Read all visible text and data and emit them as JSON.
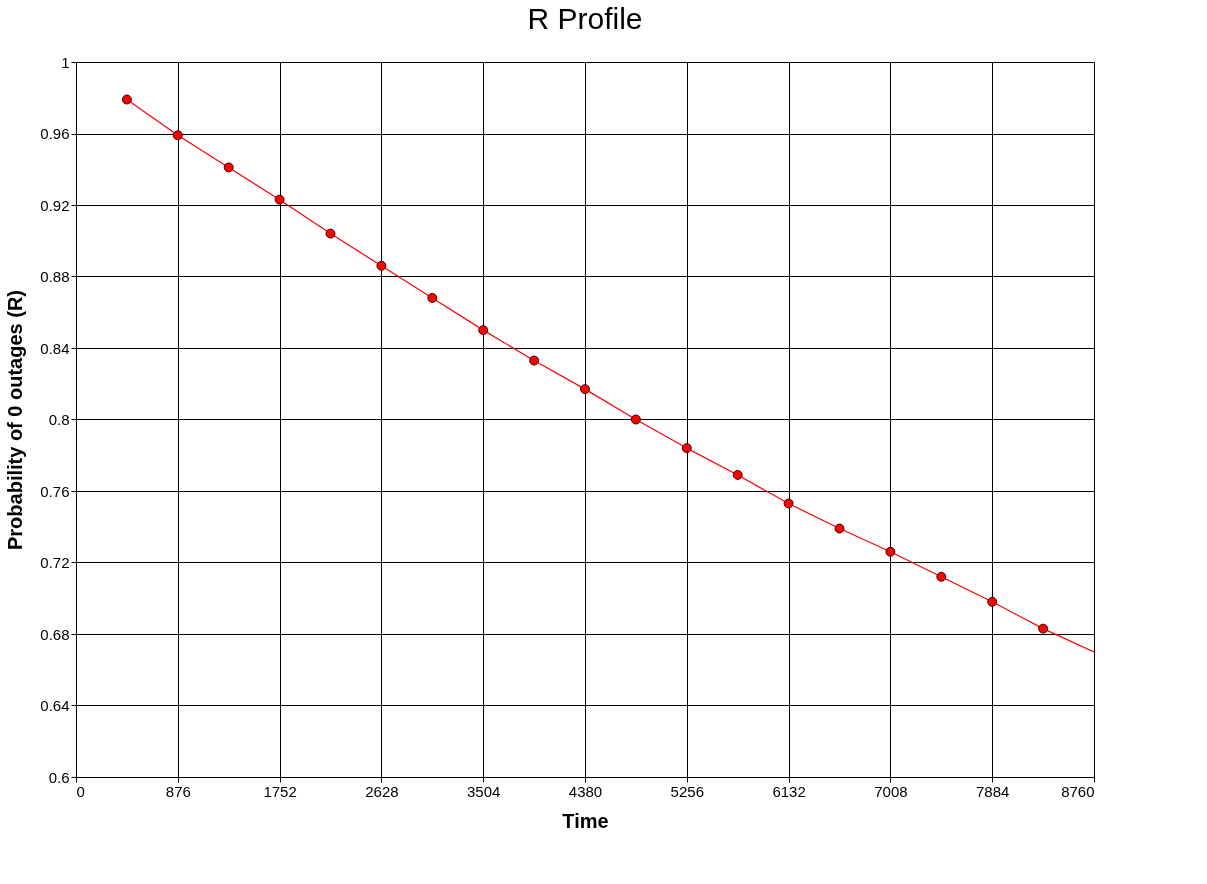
{
  "chart_data": {
    "type": "line",
    "title": "R Profile",
    "xlabel": "Time",
    "ylabel": "Probability of 0 outages (R)",
    "series": [
      {
        "marker": "none",
        "color": "#ff0000",
        "x": [
          438,
          876,
          1314,
          1752,
          2190,
          2628,
          3066,
          3504,
          3942,
          4380,
          4818,
          5256,
          5694,
          6132,
          6570,
          7008,
          7446,
          7884,
          8322,
          8760
        ],
        "values": [
          0.979,
          0.959,
          0.941,
          0.923,
          0.904,
          0.886,
          0.868,
          0.85,
          0.833,
          0.817,
          0.8,
          0.784,
          0.769,
          0.753,
          0.739,
          0.726,
          0.712,
          0.698,
          0.683,
          0.67
        ]
      },
      {
        "type": "scatter",
        "marker": "circle",
        "color": "#ff0000",
        "x": [
          438,
          876,
          1314,
          1752,
          2190,
          2628,
          3066,
          3504,
          3942,
          4380,
          4818,
          5256,
          5694,
          6132,
          6570,
          7008,
          7446,
          7884,
          8322
        ],
        "values": [
          0.979,
          0.959,
          0.941,
          0.923,
          0.904,
          0.886,
          0.868,
          0.85,
          0.833,
          0.817,
          0.8,
          0.784,
          0.769,
          0.753,
          0.739,
          0.726,
          0.712,
          0.698,
          0.683
        ]
      }
    ],
    "grid": true,
    "xlim": [
      0,
      8760
    ],
    "xticks": [
      0,
      876,
      1752,
      2628,
      3504,
      4380,
      5256,
      6132,
      7008,
      7884,
      8760
    ],
    "ylim": [
      0.6,
      1
    ],
    "yticks": [
      0.6,
      0.64,
      0.68,
      0.72,
      0.76,
      0.8,
      0.84,
      0.88,
      0.92,
      0.96,
      1
    ]
  }
}
